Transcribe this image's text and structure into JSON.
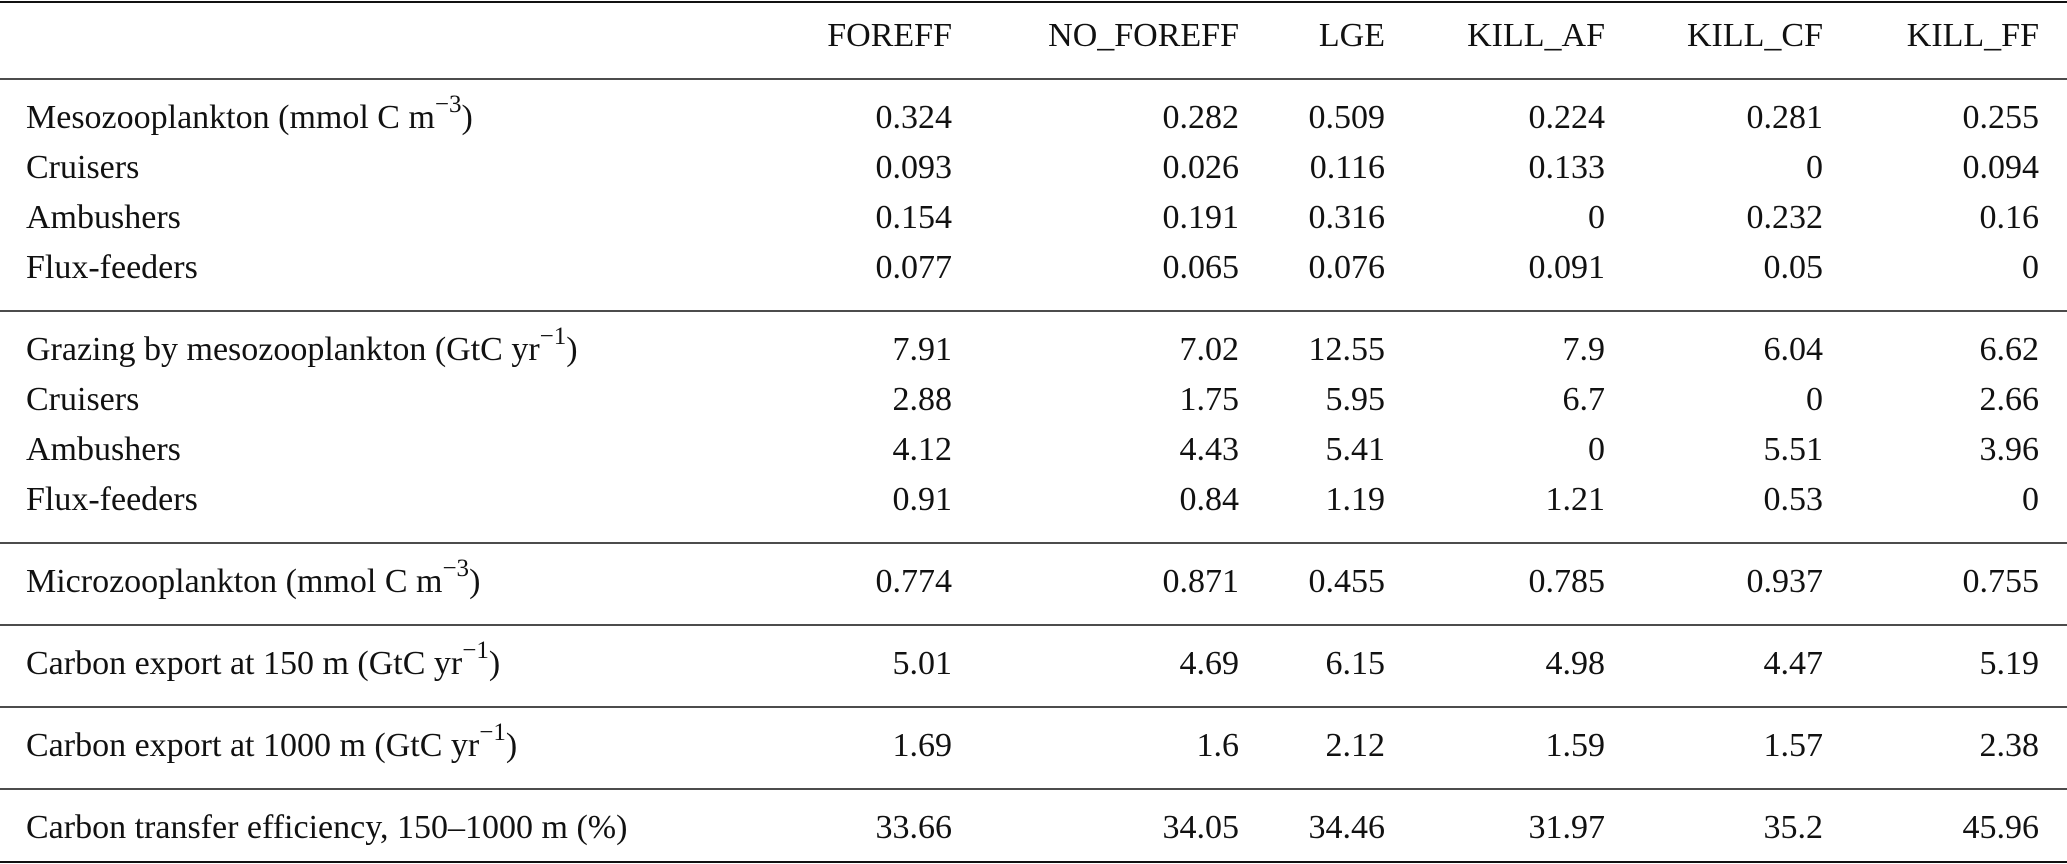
{
  "table": {
    "columns": [
      "FOREFF",
      "NO_FOREFF",
      "LGE",
      "KILL_AF",
      "KILL_CF",
      "KILL_FF"
    ],
    "groups": [
      {
        "rows": [
          {
            "label": {
              "before": "Mesozooplankton (mmol C m",
              "sup": "−3",
              "after": ")"
            },
            "values": [
              0.324,
              0.282,
              0.509,
              0.224,
              0.281,
              0.255
            ]
          },
          {
            "label": "Cruisers",
            "values": [
              0.093,
              0.026,
              0.116,
              0.133,
              0,
              0.094
            ]
          },
          {
            "label": "Ambushers",
            "values": [
              0.154,
              0.191,
              0.316,
              0,
              0.232,
              0.16
            ]
          },
          {
            "label": "Flux-feeders",
            "values": [
              0.077,
              0.065,
              0.076,
              0.091,
              0.05,
              0
            ]
          }
        ]
      },
      {
        "rows": [
          {
            "label": {
              "before": "Grazing by mesozooplankton (GtC yr",
              "sup": "−1",
              "after": ")"
            },
            "values": [
              7.91,
              7.02,
              12.55,
              7.9,
              6.04,
              6.62
            ]
          },
          {
            "label": "Cruisers",
            "values": [
              2.88,
              1.75,
              5.95,
              6.7,
              0,
              2.66
            ]
          },
          {
            "label": "Ambushers",
            "values": [
              4.12,
              4.43,
              5.41,
              0,
              5.51,
              3.96
            ]
          },
          {
            "label": "Flux-feeders",
            "values": [
              0.91,
              0.84,
              1.19,
              1.21,
              0.53,
              0
            ]
          }
        ]
      },
      {
        "rows": [
          {
            "label": {
              "before": "Microzooplankton (mmol C m",
              "sup": "−3",
              "after": ")"
            },
            "values": [
              0.774,
              0.871,
              0.455,
              0.785,
              0.937,
              0.755
            ]
          }
        ]
      },
      {
        "rows": [
          {
            "label": {
              "before": "Carbon export at 150 m (GtC yr",
              "sup": "−1",
              "after": ")"
            },
            "values": [
              5.01,
              4.69,
              6.15,
              4.98,
              4.47,
              5.19
            ]
          }
        ]
      },
      {
        "rows": [
          {
            "label": {
              "before": "Carbon export at 1000 m (GtC yr",
              "sup": "−1",
              "after": ")"
            },
            "values": [
              1.69,
              1.6,
              2.12,
              1.59,
              1.57,
              2.38
            ]
          }
        ]
      },
      {
        "rows": [
          {
            "label": "Carbon transfer efficiency, 150–1000 m (%)",
            "values": [
              33.66,
              34.05,
              34.46,
              31.97,
              35.2,
              45.96
            ]
          }
        ]
      }
    ]
  }
}
